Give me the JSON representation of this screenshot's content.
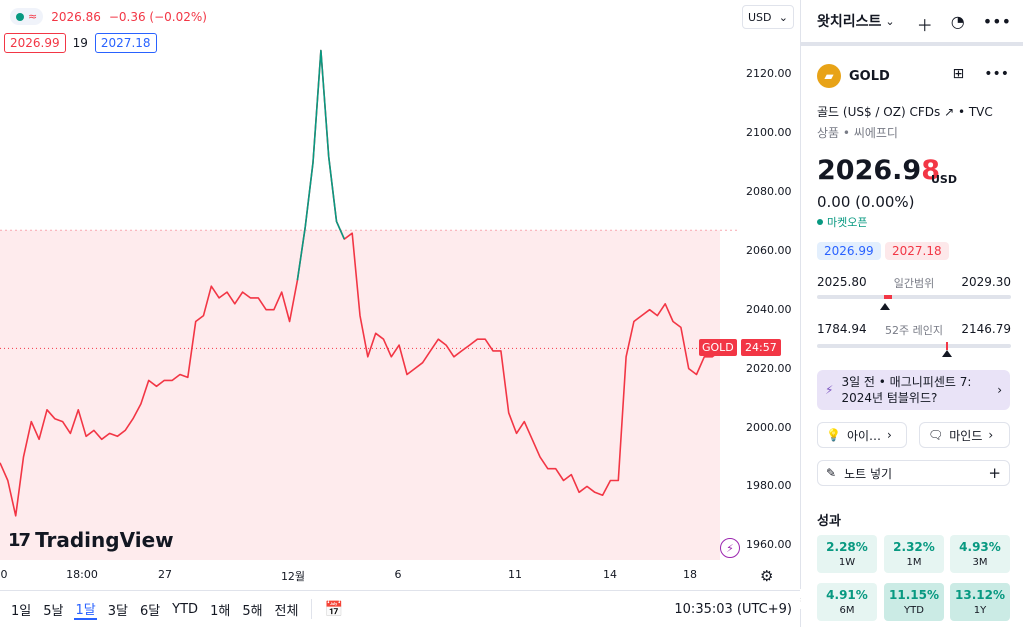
{
  "header": {
    "price": "2026.86",
    "change": "−0.36 (−0.02%)",
    "bid": "2026.99",
    "spread": "19",
    "ask": "2027.18",
    "currency": "USD"
  },
  "chart_data": {
    "type": "line",
    "y_ticks": [
      "2120.00",
      "2100.00",
      "2080.00",
      "2060.00",
      "2040.00",
      "2020.00",
      "2000.00",
      "1980.00",
      "1960.00"
    ],
    "x_ticks": [
      "0",
      "18:00",
      "27",
      "12월",
      "6",
      "11",
      "14",
      "18"
    ],
    "ylim": [
      1955,
      2135
    ],
    "last_price": 2026.86,
    "countdown": "24:57",
    "symbol_tag": "GOLD",
    "series": [
      {
        "values": [
          1988,
          1982,
          1970,
          1990,
          2002,
          1996,
          2006,
          2003,
          2002,
          1998,
          2006,
          1997,
          1999,
          1996,
          1998,
          1997,
          1999,
          2003,
          2008,
          2016,
          2014,
          2016,
          2016,
          2018,
          2017,
          2036,
          2038,
          2048,
          2044,
          2046,
          2042,
          2046,
          2044,
          2044,
          2040,
          2040,
          2046,
          2036,
          2050,
          2068,
          2090,
          2128,
          2092,
          2070,
          2064,
          2066,
          2038,
          2024,
          2032,
          2030,
          2024,
          2028,
          2018,
          2020,
          2022,
          2026,
          2030,
          2028,
          2024,
          2026,
          2028,
          2030,
          2030,
          2026,
          2026,
          2005,
          1998,
          2002,
          1996,
          1990,
          1986,
          1986,
          1982,
          1984,
          1978,
          1980,
          1978,
          1977,
          1982,
          1982,
          2024,
          2036,
          2038,
          2040,
          2038,
          2042,
          2036,
          2034,
          2020,
          2018,
          2024,
          2024,
          2026
        ]
      }
    ]
  },
  "logo": {
    "text": "TradingView"
  },
  "bottombar": {
    "ranges": [
      "1일",
      "5날",
      "1달",
      "3달",
      "6달",
      "YTD",
      "1해",
      "5해",
      "전체"
    ],
    "active": "1달",
    "time": "10:35:03 (UTC+9)"
  },
  "sidebar": {
    "watchlist_title": "왓치리스트",
    "symbol": "GOLD",
    "description": "골드 (US$ / OZ) CFDs",
    "exchange": "TVC",
    "category": "상품",
    "subcategory": "씨에프디",
    "price_main": "2026.9",
    "price_last": "8",
    "price_currency": "USD",
    "change": "0.00 (0.00%)",
    "market_status": "마켓오픈",
    "bid": "2026.99",
    "ask": "2027.18",
    "day_low": "2025.80",
    "day_label": "일간범위",
    "day_high": "2029.30",
    "day_pos": 0.35,
    "wk_low": "1784.94",
    "wk_label": "52주 레인지",
    "wk_high": "2146.79",
    "wk_pos": 0.67,
    "news": "3일 전 • 매그니피센트 7: 2024년 텀블위드?",
    "chip_ideas": "아이…",
    "chip_minds": "마인드",
    "note": "노트 넣기",
    "performance_title": "성과",
    "performance": [
      {
        "value": "2.28%",
        "label": "1W"
      },
      {
        "value": "2.32%",
        "label": "1M"
      },
      {
        "value": "4.93%",
        "label": "3M"
      },
      {
        "value": "4.91%",
        "label": "6M"
      },
      {
        "value": "11.15%",
        "label": "YTD"
      },
      {
        "value": "13.12%",
        "label": "1Y"
      }
    ]
  }
}
